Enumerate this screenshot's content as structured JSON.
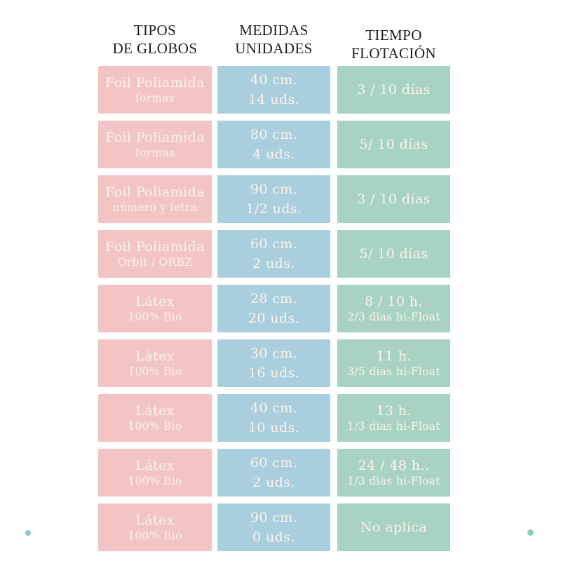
{
  "colors": {
    "tipos_cell": "#f2c5c4",
    "medidas_cell": "#a9cedd",
    "tiempo_cell": "#a8d2c3",
    "cell_text": "#fbf4ea",
    "header_text": "#1e1e1e",
    "dot_left": "#8ec3d9",
    "dot_right": "#8fcdbb"
  },
  "chart_data": {
    "type": "table",
    "columns": [
      {
        "line1": "TIPOS",
        "line2": "DE GLOBOS"
      },
      {
        "line1": "MEDIDAS",
        "line2": "UNIDADES"
      },
      {
        "line1": "TIEMPO",
        "line2": "FLOTACIÓN"
      }
    ],
    "rows": [
      {
        "tipo": "Foil Poliamida",
        "tipo_sub": "formas",
        "medida": "40 cm.",
        "unidades": "14 uds.",
        "tiempo": "3 / 10 días",
        "tiempo_sub": ""
      },
      {
        "tipo": "Foil Poliamida",
        "tipo_sub": "formas",
        "medida": "80 cm.",
        "unidades": "4 uds.",
        "tiempo": "5/ 10 días",
        "tiempo_sub": ""
      },
      {
        "tipo": "Foil Poliamida",
        "tipo_sub": "número y letra",
        "medida": "90 cm.",
        "unidades": "1/2 uds.",
        "tiempo": "3 / 10 días",
        "tiempo_sub": ""
      },
      {
        "tipo": "Foil Poliamida",
        "tipo_sub": "Orbit / ORBZ",
        "medida": "60 cm.",
        "unidades": "2 uds.",
        "tiempo": "5/ 10 días",
        "tiempo_sub": ""
      },
      {
        "tipo": "Látex",
        "tipo_sub": "100% Bio",
        "medida": "28 cm.",
        "unidades": "20 uds.",
        "tiempo": "8 / 10 h.",
        "tiempo_sub": "2/3 dias hi-Float"
      },
      {
        "tipo": "Látex",
        "tipo_sub": "100% Bio",
        "medida": "30 cm.",
        "unidades": "16 uds.",
        "tiempo": "11 h.",
        "tiempo_sub": "3/5 dias hi-Float"
      },
      {
        "tipo": "Látex",
        "tipo_sub": "100% Bio",
        "medida": "40 cm.",
        "unidades": "10 uds.",
        "tiempo": "13 h.",
        "tiempo_sub": "1/3 dias hi-Float"
      },
      {
        "tipo": "Látex",
        "tipo_sub": "100% Bio",
        "medida": "60 cm.",
        "unidades": "2 uds.",
        "tiempo": "24 / 48 h..",
        "tiempo_sub": "1/3 dias hi-Float"
      },
      {
        "tipo": "Látex",
        "tipo_sub": "100% Bio",
        "medida": "90 cm.",
        "unidades": "0 uds.",
        "tiempo": "No aplica",
        "tiempo_sub": ""
      }
    ]
  }
}
